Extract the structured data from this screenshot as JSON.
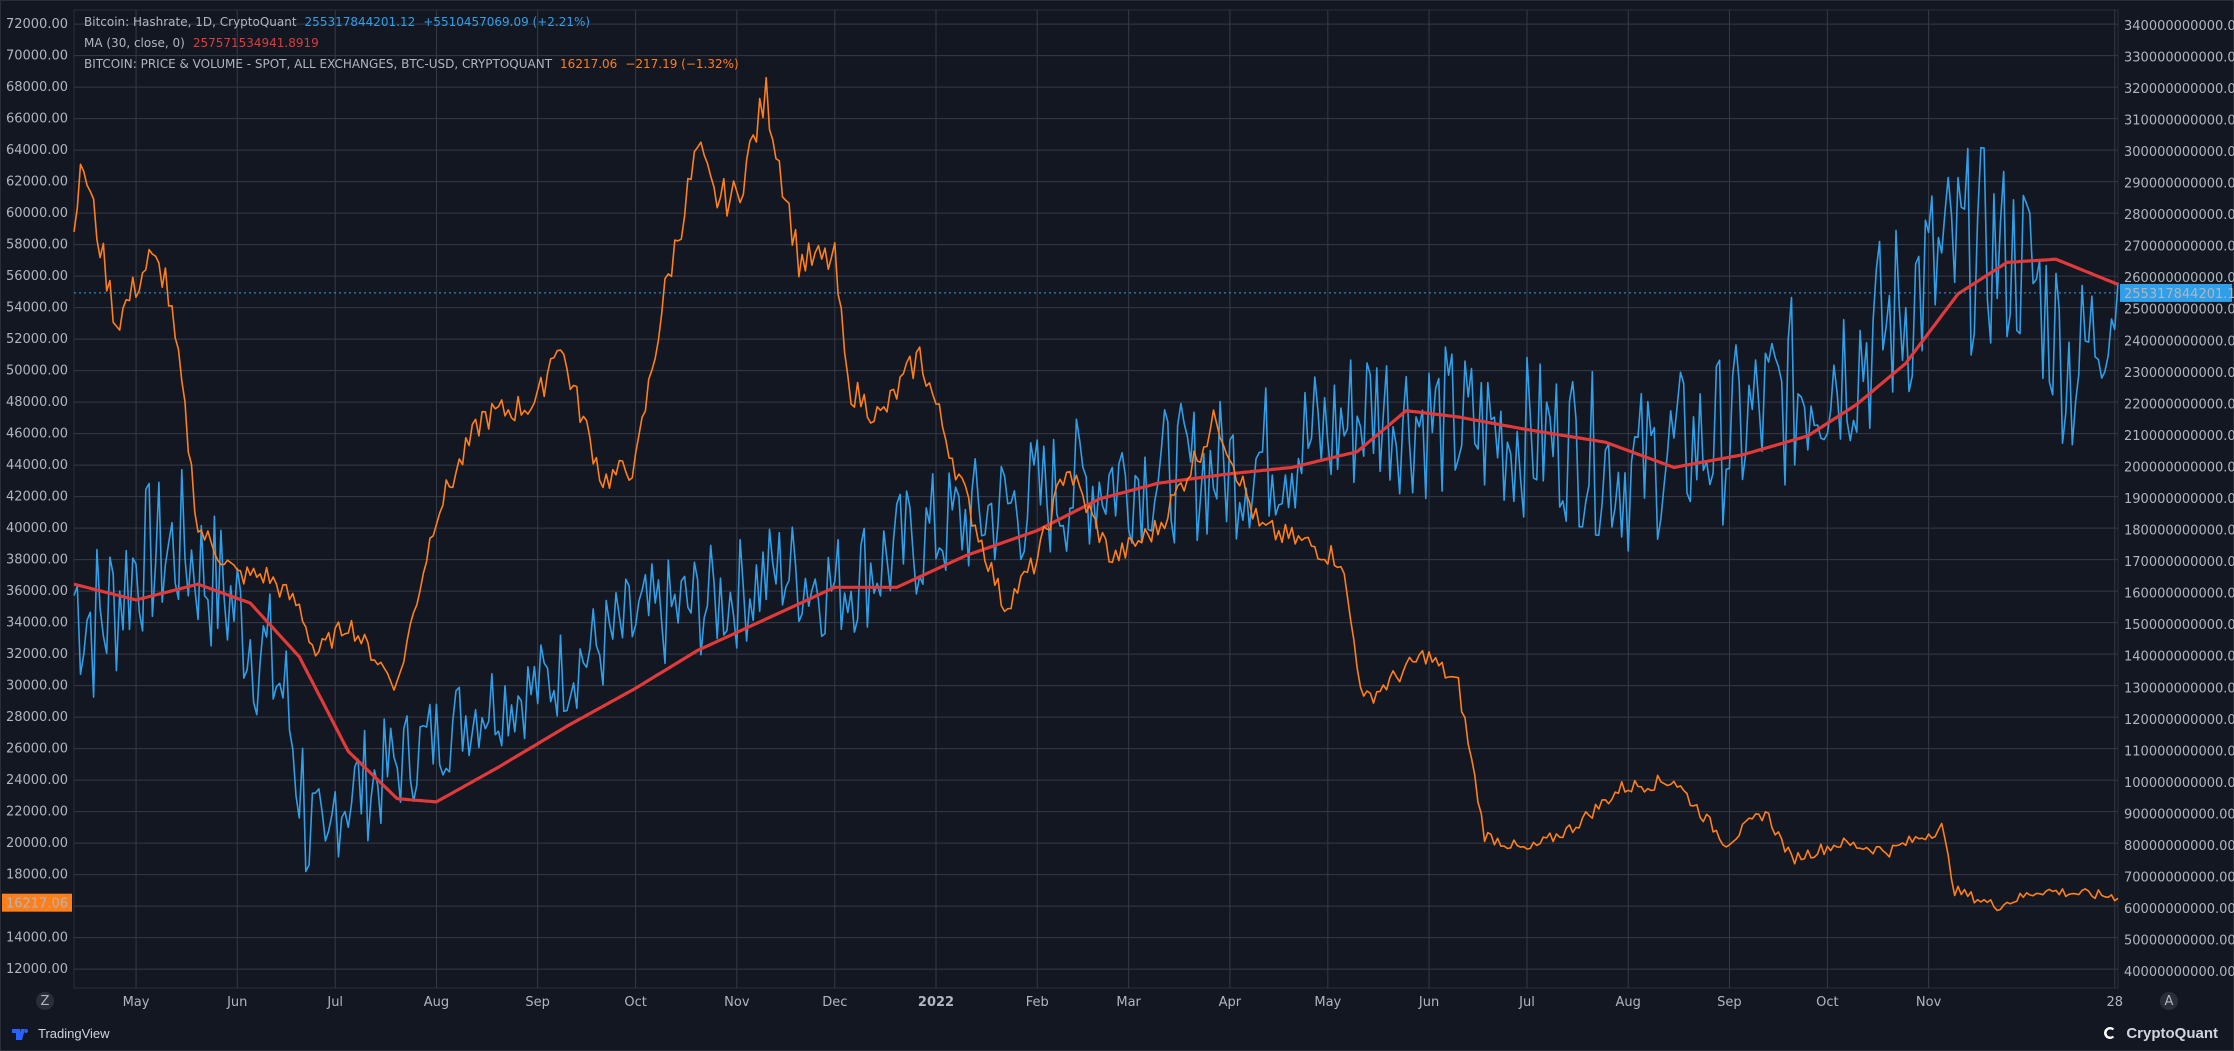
{
  "chart_data": {
    "type": "line",
    "legend": {
      "hashrate": {
        "label": "Bitcoin: Hashrate, 1D, CryptoQuant",
        "value": "255317844201.12",
        "change": "+5510457069.09 (+2.21%)"
      },
      "ma": {
        "label": "MA (30, close, 0)",
        "value": "257571534941.8919"
      },
      "price": {
        "label": "BITCOIN: PRICE & VOLUME - SPOT, ALL EXCHANGES, BTC-USD, CRYPTOQUANT",
        "value": "16217.06",
        "change": "−217.19 (−1.32%)"
      }
    },
    "x_tick_labels": [
      "May",
      "Jun",
      "Jul",
      "Aug",
      "Sep",
      "Oct",
      "Nov",
      "Dec",
      "2022",
      "Feb",
      "Mar",
      "Apr",
      "May",
      "Jun",
      "Jul",
      "Aug",
      "Sep",
      "Oct",
      "Nov",
      "28"
    ],
    "x_range": [
      "2021-04-12",
      "2022-12-29"
    ],
    "left_axis": {
      "ticks": [
        "12000.00",
        "14000.00",
        "16000.00",
        "18000.00",
        "20000.00",
        "22000.00",
        "24000.00",
        "26000.00",
        "28000.00",
        "30000.00",
        "32000.00",
        "34000.00",
        "36000.00",
        "38000.00",
        "40000.00",
        "42000.00",
        "44000.00",
        "46000.00",
        "48000.00",
        "50000.00",
        "52000.00",
        "54000.00",
        "56000.00",
        "58000.00",
        "60000.00",
        "62000.00",
        "64000.00",
        "66000.00",
        "68000.00",
        "70000.00",
        "72000.00"
      ],
      "range": [
        10800,
        72900
      ],
      "current_label": "16217.06"
    },
    "right_axis": {
      "ticks": [
        "40000000000.00",
        "50000000000.00",
        "60000000000.00",
        "70000000000.00",
        "80000000000.00",
        "90000000000.00",
        "100000000000.00",
        "110000000000.00",
        "120000000000.00",
        "130000000000.00",
        "140000000000.00",
        "150000000000.00",
        "160000000000.00",
        "170000000000.00",
        "180000000000.00",
        "190000000000.00",
        "200000000000.00",
        "210000000000.00",
        "220000000000.00",
        "230000000000.00",
        "240000000000.00",
        "250000000000.00",
        "260000000000.00",
        "270000000000.00",
        "280000000000.00",
        "290000000000.00",
        "300000000000.00",
        "310000000000.00",
        "320000000000.00",
        "330000000000.00",
        "340000000000.00"
      ],
      "range": [
        35000000000,
        345000000000
      ],
      "current_label": "255317844201.12"
    },
    "series": [
      {
        "name": "Bitcoin: Hashrate",
        "axis": "right",
        "color": "#2e9fe8",
        "x": [
          "2021-04-12",
          "2021-04-20",
          "2021-05-01",
          "2021-05-15",
          "2021-06-01",
          "2021-06-15",
          "2021-06-28",
          "2021-07-01",
          "2021-07-15",
          "2021-08-01",
          "2021-08-15",
          "2021-09-01",
          "2021-09-15",
          "2021-10-01",
          "2021-10-15",
          "2021-11-01",
          "2021-11-15",
          "2021-12-01",
          "2021-12-15",
          "2022-01-01",
          "2022-01-15",
          "2022-02-01",
          "2022-02-15",
          "2022-03-01",
          "2022-03-15",
          "2022-04-01",
          "2022-04-15",
          "2022-05-01",
          "2022-05-15",
          "2022-06-01",
          "2022-06-15",
          "2022-07-01",
          "2022-07-15",
          "2022-08-01",
          "2022-08-15",
          "2022-09-01",
          "2022-09-15",
          "2022-10-01",
          "2022-10-15",
          "2022-11-01",
          "2022-11-15",
          "2022-12-01",
          "2022-12-15",
          "2022-12-29"
        ],
        "values": [
          160000000000.0,
          150000000000.0,
          170000000000.0,
          175000000000.0,
          155000000000.0,
          130000000000.0,
          60000000000.0,
          95000000000.0,
          102000000000.0,
          115000000000.0,
          125000000000.0,
          130000000000.0,
          140000000000.0,
          150000000000.0,
          155000000000.0,
          160000000000.0,
          168000000000.0,
          162000000000.0,
          170000000000.0,
          180000000000.0,
          185000000000.0,
          190000000000.0,
          195000000000.0,
          198000000000.0,
          198000000000.0,
          200000000000.0,
          205000000000.0,
          210000000000.0,
          220000000000.0,
          215000000000.0,
          212000000000.0,
          210000000000.0,
          208000000000.0,
          198000000000.0,
          205000000000.0,
          210000000000.0,
          220000000000.0,
          232000000000.0,
          240000000000.0,
          260000000000.0,
          270000000000.0,
          265000000000.0,
          230000000000.0,
          255000000000.0
        ],
        "band": [
          30000000000.0,
          30000000000.0,
          25000000000.0,
          25000000000.0,
          25000000000.0,
          25000000000.0,
          30000000000.0,
          20000000000.0,
          18000000000.0,
          15000000000.0,
          15000000000.0,
          15000000000.0,
          16000000000.0,
          18000000000.0,
          18000000000.0,
          18000000000.0,
          18000000000.0,
          18000000000.0,
          20000000000.0,
          20000000000.0,
          20000000000.0,
          22000000000.0,
          22000000000.0,
          22000000000.0,
          22000000000.0,
          24000000000.0,
          24000000000.0,
          26000000000.0,
          26000000000.0,
          26000000000.0,
          26000000000.0,
          26000000000.0,
          26000000000.0,
          26000000000.0,
          26000000000.0,
          28000000000.0,
          30000000000.0,
          32000000000.0,
          32000000000.0,
          34000000000.0,
          34000000000.0,
          30000000000.0,
          30000000000.0,
          20000000000.0
        ]
      },
      {
        "name": "MA (30, close, 0)",
        "axis": "right",
        "color": "#e03a3a",
        "x": [
          "2021-04-12",
          "2021-05-01",
          "2021-05-20",
          "2021-06-05",
          "2021-06-20",
          "2021-07-05",
          "2021-07-20",
          "2021-08-01",
          "2021-08-20",
          "2021-09-10",
          "2021-10-01",
          "2021-10-20",
          "2021-11-10",
          "2021-12-01",
          "2021-12-20",
          "2022-01-10",
          "2022-02-01",
          "2022-02-20",
          "2022-03-10",
          "2022-04-01",
          "2022-04-20",
          "2022-05-10",
          "2022-05-25",
          "2022-06-10",
          "2022-07-01",
          "2022-07-25",
          "2022-08-15",
          "2022-09-05",
          "2022-09-25",
          "2022-10-10",
          "2022-10-25",
          "2022-11-10",
          "2022-11-25",
          "2022-12-10",
          "2022-12-29"
        ],
        "values": [
          163000000000.0,
          158000000000.0,
          163000000000.0,
          157000000000.0,
          140000000000.0,
          110000000000.0,
          95000000000.0,
          94000000000.0,
          105000000000.0,
          118000000000.0,
          130000000000.0,
          142000000000.0,
          152000000000.0,
          162000000000.0,
          162000000000.0,
          172000000000.0,
          180000000000.0,
          190000000000.0,
          195000000000.0,
          198000000000.0,
          200000000000.0,
          205000000000.0,
          218000000000.0,
          216000000000.0,
          212000000000.0,
          208000000000.0,
          200000000000.0,
          204000000000.0,
          210000000000.0,
          220000000000.0,
          233000000000.0,
          255000000000.0,
          265000000000.0,
          266000000000.0,
          258000000000.0
        ]
      },
      {
        "name": "BITCOIN: PRICE",
        "axis": "left",
        "color": "#ff7f1a",
        "x": [
          "2021-04-12",
          "2021-04-15",
          "2021-04-25",
          "2021-05-05",
          "2021-05-10",
          "2021-05-15",
          "2021-05-20",
          "2021-06-01",
          "2021-06-10",
          "2021-06-20",
          "2021-06-25",
          "2021-07-05",
          "2021-07-20",
          "2021-08-01",
          "2021-08-15",
          "2021-09-01",
          "2021-09-07",
          "2021-09-21",
          "2021-10-01",
          "2021-10-10",
          "2021-10-20",
          "2021-10-25",
          "2021-11-01",
          "2021-11-10",
          "2021-11-20",
          "2021-12-01",
          "2021-12-05",
          "2021-12-15",
          "2021-12-27",
          "2022-01-10",
          "2022-01-22",
          "2022-02-01",
          "2022-02-10",
          "2022-02-24",
          "2022-03-10",
          "2022-03-28",
          "2022-04-10",
          "2022-04-25",
          "2022-05-05",
          "2022-05-12",
          "2022-05-31",
          "2022-06-10",
          "2022-06-18",
          "2022-07-01",
          "2022-07-15",
          "2022-07-30",
          "2022-08-15",
          "2022-08-31",
          "2022-09-12",
          "2022-09-20",
          "2022-10-05",
          "2022-10-20",
          "2022-11-05",
          "2022-11-09",
          "2022-11-22",
          "2022-12-05",
          "2022-12-29"
        ],
        "values": [
          60000,
          63000,
          53000,
          57000,
          56000,
          49000,
          40000,
          37000,
          37000,
          35000,
          32000,
          34000,
          30000,
          41000,
          47000,
          48000,
          52000,
          43000,
          44000,
          55000,
          64000,
          61000,
          61000,
          67500,
          57000,
          57000,
          49000,
          47000,
          51000,
          42000,
          35000,
          38000,
          44000,
          38000,
          40000,
          47000,
          40000,
          39000,
          38000,
          29000,
          32000,
          30000,
          20500,
          19500,
          21000,
          23500,
          24000,
          20000,
          22000,
          19000,
          20000,
          19500,
          21000,
          17000,
          16000,
          17000,
          16600
        ]
      }
    ]
  }
}
